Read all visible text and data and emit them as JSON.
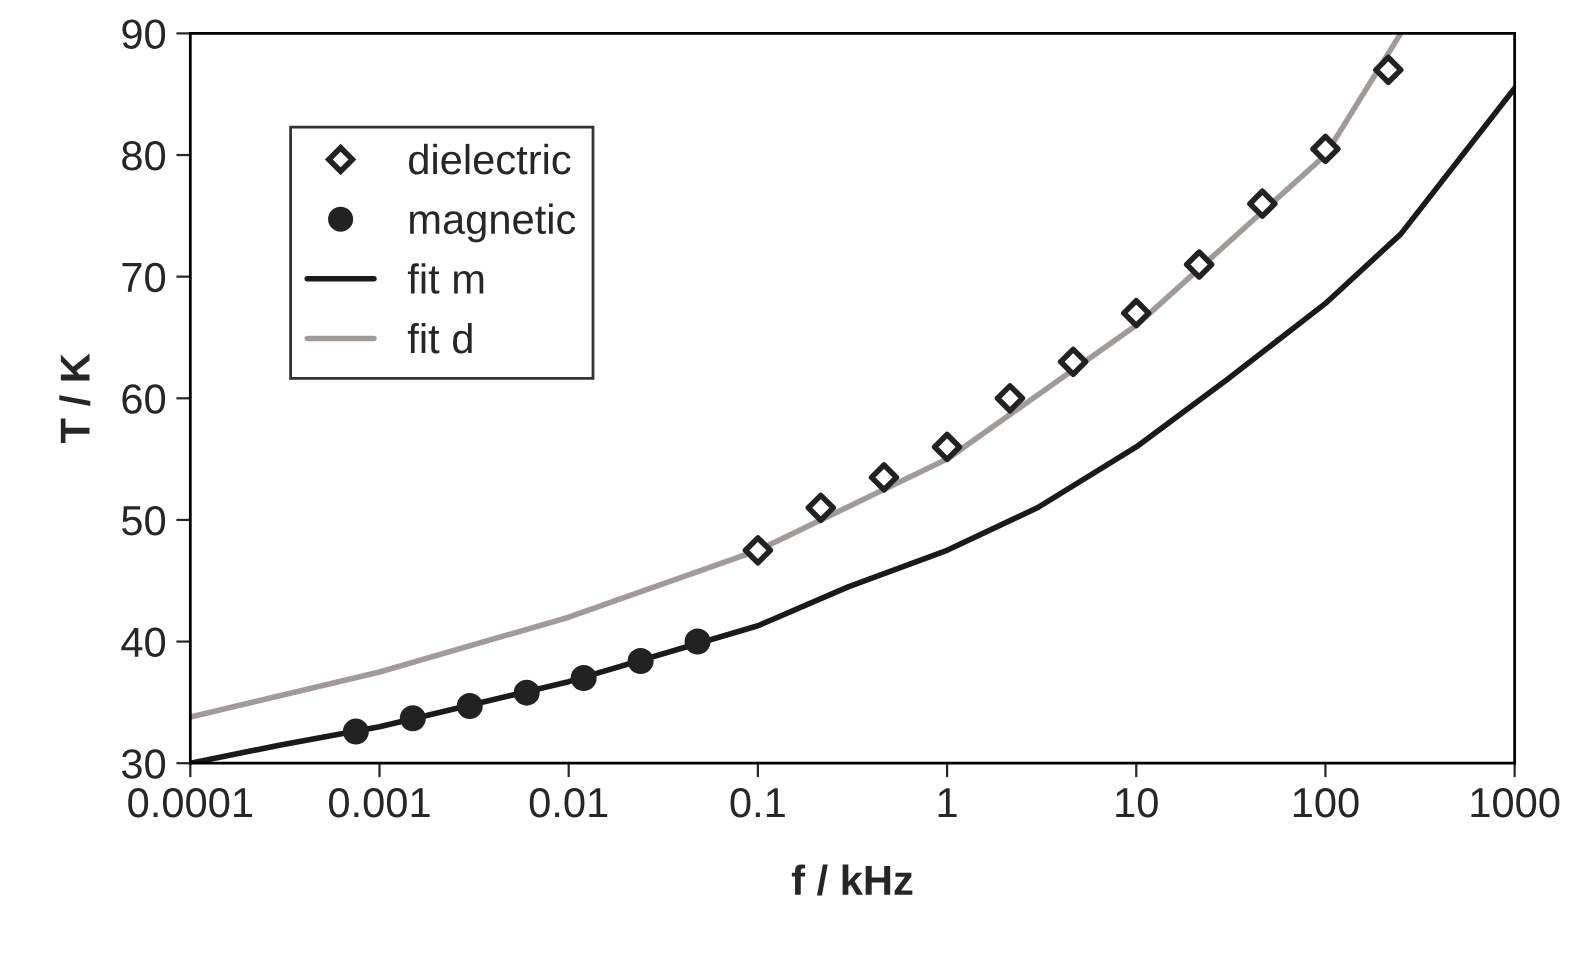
{
  "chart_data": {
    "type": "scatter",
    "xlabel": "f / kHz",
    "ylabel": "T / K",
    "log": "x",
    "xlim": [
      0.0001,
      1000
    ],
    "xticks": [
      {
        "value": 0.0001,
        "label": "0.0001"
      },
      {
        "value": 0.001,
        "label": "0.001"
      },
      {
        "value": 0.01,
        "label": "0.01"
      },
      {
        "value": 0.1,
        "label": "0.1"
      },
      {
        "value": 1,
        "label": "1"
      },
      {
        "value": 10,
        "label": "10"
      },
      {
        "value": 100,
        "label": "100"
      },
      {
        "value": 1000,
        "label": "1000"
      }
    ],
    "ylim": [
      30,
      90
    ],
    "yticks": [
      30,
      40,
      50,
      60,
      70,
      80,
      90
    ],
    "grid": false,
    "legend": "top left",
    "series": [
      {
        "name": "dielectric",
        "marker": "diamond",
        "color": "#222222",
        "x": [
          0.1,
          0.215,
          0.464,
          1,
          2.15,
          4.64,
          10,
          21.5,
          46.4,
          100,
          215
        ],
        "values": [
          47.5,
          51,
          53.5,
          56,
          60,
          63,
          67,
          71,
          76,
          80.5,
          87
        ]
      },
      {
        "name": "magnetic",
        "marker": "circle",
        "color": "#222222",
        "x": [
          0.00075,
          0.0015,
          0.003,
          0.006,
          0.012,
          0.024,
          0.048
        ],
        "values": [
          32.6,
          33.7,
          34.7,
          35.8,
          37,
          38.4,
          40
        ]
      },
      {
        "name": "fit m",
        "type": "line",
        "color": "#1a1a1a",
        "x": [
          0.0001,
          0.0003,
          0.001,
          0.01,
          0.1,
          0.3,
          1,
          3,
          10,
          30,
          100,
          250,
          1000
        ],
        "values": [
          30,
          31.5,
          33,
          36.7,
          41.3,
          44.5,
          47.5,
          51,
          56,
          61.5,
          67.8,
          73.5,
          85.5
        ]
      },
      {
        "name": "fit d",
        "type": "line",
        "color": "#a09a98",
        "x": [
          0.0001,
          0.001,
          0.01,
          0.1,
          1,
          10,
          100,
          250
        ],
        "values": [
          33.8,
          37.5,
          42,
          47.5,
          55,
          66,
          80,
          90
        ]
      }
    ]
  }
}
